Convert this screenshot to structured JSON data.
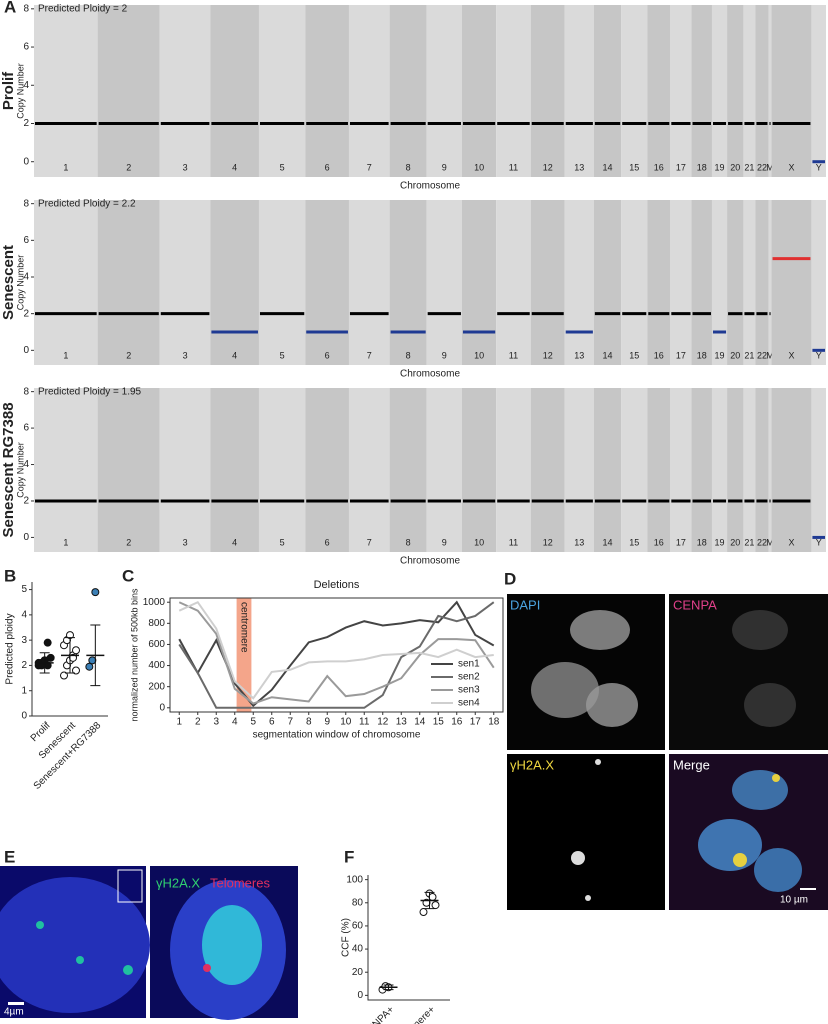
{
  "panels": {
    "a": "A",
    "b": "B",
    "c": "C",
    "d": "D",
    "e": "E",
    "f": "F"
  },
  "images": {
    "d": {
      "dapi": "DAPI",
      "cenpa": "CENPA",
      "h2ax": "γH2A.X",
      "merge": "Merge",
      "scale": "10 µm"
    },
    "e": {
      "h2ax": "γH2A.X",
      "telomeres": "Telomeres",
      "scale": "4µm"
    }
  },
  "chart_data": [
    {
      "type": "segments",
      "side_label": "Prolif",
      "subtitle": "Predicted Ploidy = 2",
      "ylabel": "Copy Number",
      "xlabel": "Chromosome",
      "categories": [
        "1",
        "2",
        "3",
        "4",
        "5",
        "6",
        "7",
        "8",
        "9",
        "10",
        "11",
        "12",
        "13",
        "14",
        "15",
        "16",
        "17",
        "18",
        "19",
        "20",
        "21",
        "22",
        "M",
        "X",
        "Y"
      ],
      "values": [
        2,
        2,
        2,
        2,
        2,
        2,
        2,
        2,
        2,
        2,
        2,
        2,
        2,
        2,
        2,
        2,
        2,
        2,
        2,
        2,
        2,
        2,
        2,
        2,
        0
      ],
      "colors": [
        "#000",
        "#000",
        "#000",
        "#000",
        "#000",
        "#000",
        "#000",
        "#000",
        "#000",
        "#000",
        "#000",
        "#000",
        "#000",
        "#000",
        "#000",
        "#000",
        "#000",
        "#000",
        "#000",
        "#000",
        "#000",
        "#000",
        "#000",
        "#000",
        "#1f3a93"
      ],
      "ylim": [
        -0.8,
        8.2
      ],
      "yticks": [
        0,
        2,
        4,
        6,
        8
      ]
    },
    {
      "type": "segments",
      "side_label": "Senescent",
      "subtitle": "Predicted Ploidy = 2.2",
      "ylabel": "Copy Number",
      "xlabel": "Chromosome",
      "categories": [
        "1",
        "2",
        "3",
        "4",
        "5",
        "6",
        "7",
        "8",
        "9",
        "10",
        "11",
        "12",
        "13",
        "14",
        "15",
        "16",
        "17",
        "18",
        "19",
        "20",
        "21",
        "22",
        "M",
        "X",
        "Y"
      ],
      "values": [
        2,
        2,
        2,
        1,
        2,
        1,
        2,
        1,
        2,
        1,
        2,
        2,
        1,
        2,
        2,
        2,
        2,
        2,
        1,
        2,
        2,
        2,
        2,
        5,
        0
      ],
      "colors": [
        "#000",
        "#000",
        "#000",
        "#1f3a93",
        "#000",
        "#1f3a93",
        "#000",
        "#1f3a93",
        "#000",
        "#1f3a93",
        "#000",
        "#000",
        "#1f3a93",
        "#000",
        "#000",
        "#000",
        "#000",
        "#000",
        "#1f3a93",
        "#000",
        "#000",
        "#000",
        "#000",
        "#e03030",
        "#1f3a93"
      ],
      "ylim": [
        -0.8,
        8.2
      ],
      "yticks": [
        0,
        2,
        4,
        6,
        8
      ]
    },
    {
      "type": "segments",
      "side_label": "Senescent RG7388",
      "subtitle": "Predicted Ploidy = 1.95",
      "ylabel": "Copy Number",
      "xlabel": "Chromosome",
      "categories": [
        "1",
        "2",
        "3",
        "4",
        "5",
        "6",
        "7",
        "8",
        "9",
        "10",
        "11",
        "12",
        "13",
        "14",
        "15",
        "16",
        "17",
        "18",
        "19",
        "20",
        "21",
        "22",
        "M",
        "X",
        "Y"
      ],
      "values": [
        2,
        2,
        2,
        2,
        2,
        2,
        2,
        2,
        2,
        2,
        2,
        2,
        2,
        2,
        2,
        2,
        2,
        2,
        2,
        2,
        2,
        2,
        2,
        2,
        0
      ],
      "colors": [
        "#000",
        "#000",
        "#000",
        "#000",
        "#000",
        "#000",
        "#000",
        "#000",
        "#000",
        "#000",
        "#000",
        "#000",
        "#000",
        "#000",
        "#000",
        "#000",
        "#000",
        "#000",
        "#000",
        "#000",
        "#000",
        "#000",
        "#000",
        "#000",
        "#1f3a93"
      ],
      "ylim": [
        -0.8,
        8.2
      ],
      "yticks": [
        0,
        2,
        4,
        6,
        8
      ]
    },
    {
      "type": "dot",
      "ylabel": "Predicted ploidy",
      "categories": [
        "Prolif",
        "Senescent",
        "Senescent+RG7388"
      ],
      "points": [
        [
          2.0,
          2.1,
          2.2,
          2.0,
          2.3,
          2.1,
          2.0,
          2.2,
          2.9
        ],
        [
          1.6,
          2.0,
          2.2,
          2.4,
          2.6,
          2.8,
          3.0,
          3.2,
          2.3,
          1.8
        ],
        [
          1.95,
          2.2,
          4.9
        ]
      ],
      "values": [
        2.1,
        2.4,
        2.4
      ],
      "errors": [
        0.4,
        0.7,
        1.2
      ],
      "colors": [
        "#111",
        "#fff",
        "#3b7fb5"
      ],
      "ylim": [
        0,
        5.3
      ],
      "yticks": [
        0,
        1,
        2,
        3,
        4,
        5
      ]
    },
    {
      "type": "line",
      "title": "Deletions",
      "xlabel": "segmentation window of chromosome",
      "ylabel": "normalized number of 500kb bins",
      "x": [
        1,
        2,
        3,
        4,
        5,
        6,
        7,
        8,
        9,
        10,
        11,
        12,
        13,
        14,
        15,
        16,
        17,
        18
      ],
      "series": [
        {
          "name": "sen1",
          "color": "#444",
          "values": [
            650,
            330,
            640,
            230,
            20,
            170,
            400,
            620,
            670,
            760,
            820,
            780,
            800,
            830,
            810,
            1000,
            690,
            590
          ]
        },
        {
          "name": "sen2",
          "color": "#6a6a6a",
          "values": [
            600,
            330,
            0,
            0,
            0,
            0,
            0,
            0,
            0,
            0,
            0,
            120,
            480,
            580,
            870,
            820,
            870,
            1000
          ]
        },
        {
          "name": "sen3",
          "color": "#9a9a9a",
          "values": [
            1000,
            920,
            700,
            180,
            40,
            100,
            80,
            60,
            300,
            110,
            130,
            200,
            280,
            500,
            650,
            650,
            640,
            380
          ]
        },
        {
          "name": "sen4",
          "color": "#cfcfcf",
          "values": [
            920,
            1000,
            750,
            250,
            90,
            340,
            360,
            430,
            440,
            440,
            460,
            500,
            510,
            520,
            480,
            550,
            480,
            500
          ]
        }
      ],
      "highlight": {
        "label": "centromere",
        "range": [
          4.1,
          4.9
        ],
        "color": "#f4a58a"
      },
      "xlim": [
        0.5,
        18.5
      ],
      "ylim": [
        -40,
        1040
      ],
      "xticks": [
        1,
        2,
        3,
        4,
        5,
        6,
        7,
        8,
        9,
        10,
        11,
        12,
        13,
        14,
        15,
        16,
        17,
        18
      ],
      "yticks": [
        0,
        200,
        400,
        600,
        800,
        1000
      ]
    },
    {
      "type": "dot",
      "ylabel": "CCF (%)",
      "categories": [
        "CENPA+",
        "Telomere+"
      ],
      "points": [
        [
          5,
          8,
          7
        ],
        [
          72,
          80,
          88,
          85,
          78
        ]
      ],
      "values": [
        7,
        82
      ],
      "errors": [
        2,
        7
      ],
      "colors": [
        "#fff",
        "#fff"
      ],
      "ylim": [
        -4,
        104
      ],
      "yticks": [
        0,
        20,
        40,
        60,
        80,
        100
      ]
    }
  ]
}
